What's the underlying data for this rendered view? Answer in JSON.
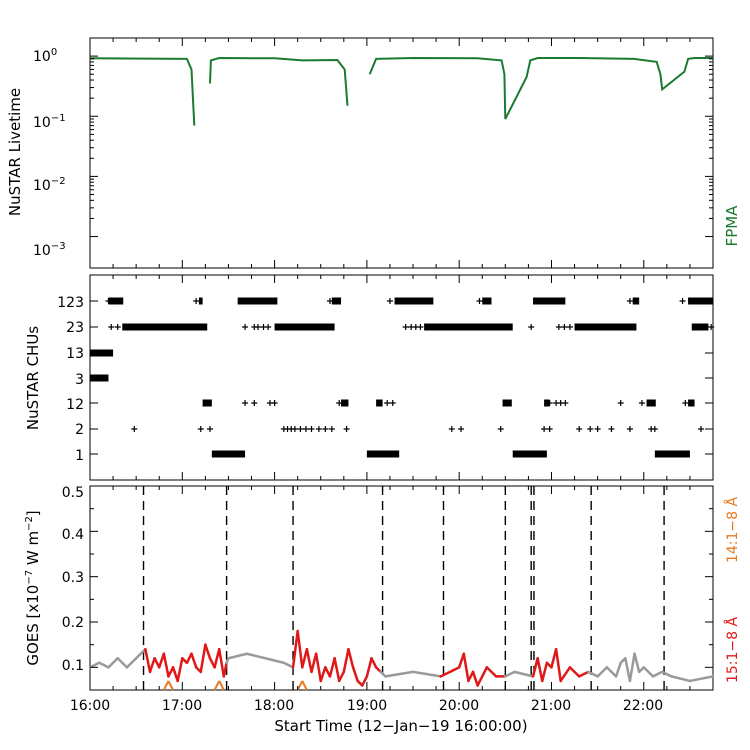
{
  "colors": {
    "axis": "#000000",
    "fpma": "#1a7a30",
    "goes15": "#e01818",
    "goes14": "#e87a20",
    "goes_background": "#9a9a9a"
  },
  "chart_data": [
    {
      "type": "line",
      "panel": "top",
      "ylabel": "NuSTAR Livetime",
      "yscale": "log",
      "ylim": [
        0.0003,
        2
      ],
      "yticks": [
        "10^0",
        "10^-1",
        "10^-2",
        "10^-3"
      ],
      "xlim_hours": [
        16.0,
        22.75
      ],
      "series": [
        {
          "name": "FPMA",
          "x_hours": [
            16.0,
            17.05,
            17.1,
            17.13,
            17.17,
            17.3,
            17.31,
            17.4,
            18.0,
            18.3,
            18.68,
            18.76,
            18.79,
            19.0,
            19.03,
            19.1,
            19.5,
            20.2,
            20.46,
            20.49,
            20.5,
            20.73,
            20.77,
            20.85,
            21.3,
            21.9,
            22.14,
            22.18,
            22.2,
            22.44,
            22.48,
            22.55,
            22.75
          ],
          "y": [
            0.92,
            0.9,
            0.6,
            0.07,
            null,
            0.35,
            0.85,
            0.93,
            0.92,
            0.85,
            0.86,
            0.6,
            0.15,
            null,
            0.5,
            0.9,
            0.93,
            0.92,
            0.85,
            0.5,
            0.09,
            0.45,
            0.85,
            0.93,
            0.93,
            0.9,
            0.8,
            0.5,
            0.28,
            0.55,
            0.9,
            0.93,
            0.93
          ]
        }
      ]
    },
    {
      "type": "scatter",
      "panel": "middle",
      "ylabel": "NuSTAR CHUs",
      "categories": [
        "1",
        "2",
        "12",
        "3",
        "13",
        "23",
        "123"
      ],
      "xlim_hours": [
        16.0,
        22.75
      ],
      "dense_segments": [
        {
          "cat": "123",
          "from": 16.2,
          "to": 16.36
        },
        {
          "cat": "123",
          "from": 17.18,
          "to": 17.22
        },
        {
          "cat": "123",
          "from": 17.6,
          "to": 18.03
        },
        {
          "cat": "123",
          "from": 18.62,
          "to": 18.72
        },
        {
          "cat": "123",
          "from": 19.3,
          "to": 19.72
        },
        {
          "cat": "123",
          "from": 20.25,
          "to": 20.35
        },
        {
          "cat": "123",
          "from": 20.8,
          "to": 21.15
        },
        {
          "cat": "123",
          "from": 21.88,
          "to": 21.95
        },
        {
          "cat": "123",
          "from": 22.48,
          "to": 22.75
        },
        {
          "cat": "23",
          "from": 16.35,
          "to": 17.27
        },
        {
          "cat": "23",
          "from": 18.0,
          "to": 18.65
        },
        {
          "cat": "23",
          "from": 19.62,
          "to": 20.58
        },
        {
          "cat": "23",
          "from": 21.25,
          "to": 21.92
        },
        {
          "cat": "23",
          "from": 22.52,
          "to": 22.7
        },
        {
          "cat": "13",
          "from": 16.0,
          "to": 16.25
        },
        {
          "cat": "3",
          "from": 16.0,
          "to": 16.2
        },
        {
          "cat": "12",
          "from": 17.22,
          "to": 17.32
        },
        {
          "cat": "12",
          "from": 18.72,
          "to": 18.8
        },
        {
          "cat": "12",
          "from": 19.1,
          "to": 19.17
        },
        {
          "cat": "12",
          "from": 20.47,
          "to": 20.57
        },
        {
          "cat": "12",
          "from": 20.92,
          "to": 20.98
        },
        {
          "cat": "12",
          "from": 22.03,
          "to": 22.13
        },
        {
          "cat": "12",
          "from": 22.48,
          "to": 22.55
        },
        {
          "cat": "1",
          "from": 17.32,
          "to": 17.68
        },
        {
          "cat": "1",
          "from": 19.0,
          "to": 19.35
        },
        {
          "cat": "1",
          "from": 20.58,
          "to": 20.95
        },
        {
          "cat": "1",
          "from": 22.12,
          "to": 22.5
        }
      ],
      "sparse_points": [
        {
          "cat": "123",
          "x": [
            16.2,
            17.15,
            18.6,
            19.25,
            20.22,
            21.85,
            22.42
          ]
        },
        {
          "cat": "23",
          "x": [
            16.23,
            16.3,
            17.03,
            17.12,
            17.68,
            17.78,
            17.82,
            17.88,
            17.93,
            19.42,
            19.48,
            19.53,
            19.58,
            20.78,
            21.08,
            21.14,
            21.2,
            22.73
          ]
        },
        {
          "cat": "12",
          "x": [
            17.68,
            17.78,
            17.95,
            18.0,
            18.7,
            19.22,
            19.28,
            20.98,
            21.05,
            21.1,
            21.15,
            21.75,
            21.98,
            22.45
          ]
        },
        {
          "cat": "2",
          "x": [
            16.48,
            17.2,
            17.3,
            18.1,
            18.14,
            18.18,
            18.22,
            18.28,
            18.34,
            18.4,
            18.48,
            18.55,
            18.62,
            18.78,
            19.92,
            20.02,
            20.45,
            20.92,
            20.98,
            21.3,
            21.42,
            21.5,
            21.65,
            21.85,
            22.08,
            22.12,
            22.62
          ]
        }
      ]
    },
    {
      "type": "line",
      "panel": "bottom",
      "ylabel": "GOES [x10^-7 W m^-2]",
      "ylim": [
        0.05,
        0.5
      ],
      "yticks": [
        0.1,
        0.2,
        0.3,
        0.4,
        0.5
      ],
      "xlim_hours": [
        16.0,
        22.75
      ],
      "xticks": [
        "16:00",
        "17:00",
        "18:00",
        "19:00",
        "20:00",
        "21:00",
        "22:00"
      ],
      "xlabel": "Start Time (12-Jan-19 16:00:00)",
      "vlines_hours": [
        16.58,
        17.48,
        18.2,
        19.17,
        19.83,
        20.5,
        20.78,
        20.81,
        21.43,
        22.22
      ],
      "series": [
        {
          "name": "15:1-8 Å",
          "x_hours": [
            16.0,
            16.1,
            16.2,
            16.3,
            16.4,
            16.5,
            16.6,
            16.65,
            16.7,
            16.75,
            16.8,
            16.85,
            16.9,
            16.95,
            17.0,
            17.05,
            17.1,
            17.15,
            17.2,
            17.25,
            17.3,
            17.35,
            17.4,
            17.45,
            17.48,
            17.5,
            17.7,
            17.9,
            18.1,
            18.2,
            18.25,
            18.3,
            18.35,
            18.4,
            18.45,
            18.5,
            18.55,
            18.6,
            18.65,
            18.7,
            18.75,
            18.8,
            18.85,
            18.9,
            18.95,
            19.0,
            19.05,
            19.1,
            19.15,
            19.2,
            19.5,
            19.8,
            20.0,
            20.05,
            20.1,
            20.15,
            20.2,
            20.3,
            20.4,
            20.5,
            20.6,
            20.8,
            20.85,
            20.9,
            20.95,
            21.0,
            21.05,
            21.1,
            21.2,
            21.3,
            21.4,
            21.5,
            21.6,
            21.65,
            21.7,
            21.75,
            21.8,
            21.85,
            21.9,
            21.95,
            22.0,
            22.1,
            22.2,
            22.3,
            22.5,
            22.75
          ],
          "y": [
            0.1,
            0.11,
            0.1,
            0.12,
            0.1,
            0.12,
            0.14,
            0.09,
            0.12,
            0.1,
            0.13,
            0.08,
            0.1,
            0.07,
            0.12,
            0.11,
            0.13,
            0.1,
            0.09,
            0.15,
            0.12,
            0.1,
            0.14,
            0.08,
            0.11,
            0.12,
            0.13,
            0.12,
            0.11,
            0.1,
            0.18,
            0.1,
            0.14,
            0.09,
            0.13,
            0.07,
            0.1,
            0.08,
            0.12,
            0.07,
            0.09,
            0.14,
            0.1,
            0.07,
            0.06,
            0.08,
            0.12,
            0.1,
            0.09,
            0.08,
            0.09,
            0.08,
            0.1,
            0.13,
            0.07,
            0.09,
            0.06,
            0.1,
            0.08,
            0.08,
            0.09,
            0.08,
            0.12,
            0.07,
            0.11,
            0.1,
            0.14,
            0.07,
            0.1,
            0.08,
            0.09,
            0.08,
            0.1,
            0.09,
            0.08,
            0.11,
            0.12,
            0.07,
            0.13,
            0.09,
            0.1,
            0.08,
            0.09,
            0.08,
            0.07,
            0.08
          ]
        },
        {
          "name": "14:1-8 Å",
          "x_hours": [
            16.8,
            16.85,
            16.9,
            17.35,
            17.4,
            17.45,
            18.25,
            18.3,
            18.35
          ],
          "y": [
            0.05,
            0.07,
            0.05,
            0.05,
            0.07,
            0.05,
            0.05,
            0.07,
            0.05
          ]
        }
      ]
    }
  ],
  "labels": {
    "top_ylabel": "NuSTAR Livetime",
    "top_series_label": "FPMA",
    "top_yticks": [
      "10",
      "10",
      "10",
      "10"
    ],
    "top_ytick_exps": [
      "0",
      "−1",
      "−2",
      "−3"
    ],
    "mid_ylabel": "NuSTAR CHUs",
    "mid_yticks": [
      "123",
      "23",
      "13",
      "3",
      "12",
      "2",
      "1"
    ],
    "bot_ylabel_main": "GOES [x10",
    "bot_ylabel_exp": "−7",
    "bot_ylabel_unit": " W m",
    "bot_ylabel_exp2": "−2",
    "bot_ylabel_end": "]",
    "bot_yticks": [
      "0.5",
      "0.4",
      "0.3",
      "0.2",
      "0.1"
    ],
    "goes14_label": "14:1−8 Å",
    "goes15_label": "15:1−8 Å",
    "xticks": [
      "16:00",
      "17:00",
      "18:00",
      "19:00",
      "20:00",
      "21:00",
      "22:00"
    ],
    "xlabel": "Start Time (12−Jan−19 16:00:00)"
  }
}
